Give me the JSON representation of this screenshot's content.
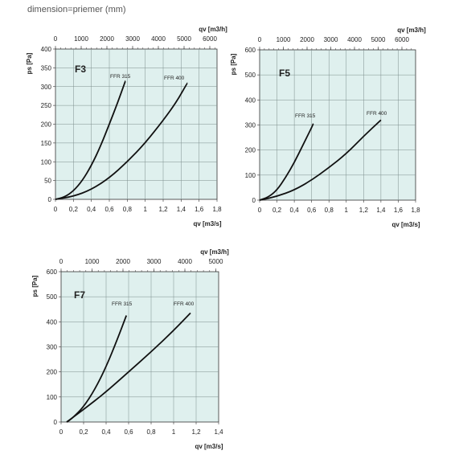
{
  "caption": "dimension=priemer (mm)",
  "chart_data": [
    {
      "type": "line",
      "title": "F3",
      "xlabel": "qv [m3/s]",
      "ylabel": "ps [Pa]",
      "top_axis_label": "qv [m3/h]",
      "xlim": [
        0,
        1.8
      ],
      "ylim": [
        0,
        400
      ],
      "x_ticks": [
        "0",
        "0,2",
        "0,4",
        "0,6",
        "0,8",
        "1",
        "1,2",
        "1,4",
        "1,6",
        "1,8"
      ],
      "y_ticks": [
        "0",
        "50",
        "100",
        "150",
        "200",
        "250",
        "300",
        "350",
        "400"
      ],
      "top_ticks": [
        "0",
        "1000",
        "2000",
        "3000",
        "4000",
        "5000",
        "6000"
      ],
      "grid": true,
      "series": [
        {
          "name": "FFR 315",
          "x": [
            0,
            0.1,
            0.2,
            0.3,
            0.4,
            0.5,
            0.6,
            0.7,
            0.78
          ],
          "y": [
            0,
            6,
            22,
            50,
            90,
            140,
            200,
            262,
            315
          ]
        },
        {
          "name": "FFR 400",
          "x": [
            0,
            0.2,
            0.4,
            0.6,
            0.8,
            1.0,
            1.2,
            1.35,
            1.47
          ],
          "y": [
            0,
            8,
            26,
            57,
            100,
            150,
            210,
            260,
            310
          ]
        }
      ]
    },
    {
      "type": "line",
      "title": "F5",
      "xlabel": "qv [m3/s]",
      "ylabel": "ps [Pa]",
      "top_axis_label": "qv [m3/h]",
      "xlim": [
        0,
        1.8
      ],
      "ylim": [
        0,
        600
      ],
      "x_ticks": [
        "0",
        "0,2",
        "0,4",
        "0,6",
        "0,8",
        "1",
        "1,2",
        "1,4",
        "1,6",
        "1,8"
      ],
      "y_ticks": [
        "0",
        "100",
        "200",
        "300",
        "400",
        "500",
        "600"
      ],
      "top_ticks": [
        "0",
        "1000",
        "2000",
        "3000",
        "4000",
        "5000",
        "6000"
      ],
      "grid": true,
      "series": [
        {
          "name": "FFR 315",
          "x": [
            0,
            0.1,
            0.2,
            0.3,
            0.4,
            0.5,
            0.6,
            0.62
          ],
          "y": [
            0,
            12,
            40,
            90,
            150,
            220,
            290,
            305
          ]
        },
        {
          "name": "FFR 400",
          "x": [
            0,
            0.2,
            0.4,
            0.6,
            0.8,
            1.0,
            1.2,
            1.4
          ],
          "y": [
            0,
            15,
            40,
            80,
            130,
            185,
            255,
            320
          ]
        }
      ]
    },
    {
      "type": "line",
      "title": "F7",
      "xlabel": "qv [m3/s]",
      "ylabel": "ps [Pa]",
      "top_axis_label": "qv [m3/h]",
      "xlim": [
        0,
        1.4
      ],
      "ylim": [
        0,
        600
      ],
      "x_ticks": [
        "0",
        "0,2",
        "0,4",
        "0,6",
        "0,8",
        "1",
        "1,2",
        "1,4"
      ],
      "y_ticks": [
        "0",
        "100",
        "200",
        "300",
        "400",
        "500",
        "600"
      ],
      "top_ticks": [
        "0",
        "1000",
        "2000",
        "3000",
        "4000",
        "5000"
      ],
      "grid": true,
      "series": [
        {
          "name": "FFR 315",
          "x": [
            0.05,
            0.1,
            0.2,
            0.3,
            0.4,
            0.5,
            0.58
          ],
          "y": [
            0,
            15,
            60,
            130,
            220,
            330,
            425
          ]
        },
        {
          "name": "FFR 400",
          "x": [
            0.05,
            0.2,
            0.4,
            0.6,
            0.8,
            1.0,
            1.15
          ],
          "y": [
            0,
            50,
            120,
            200,
            280,
            365,
            435
          ]
        }
      ]
    }
  ]
}
